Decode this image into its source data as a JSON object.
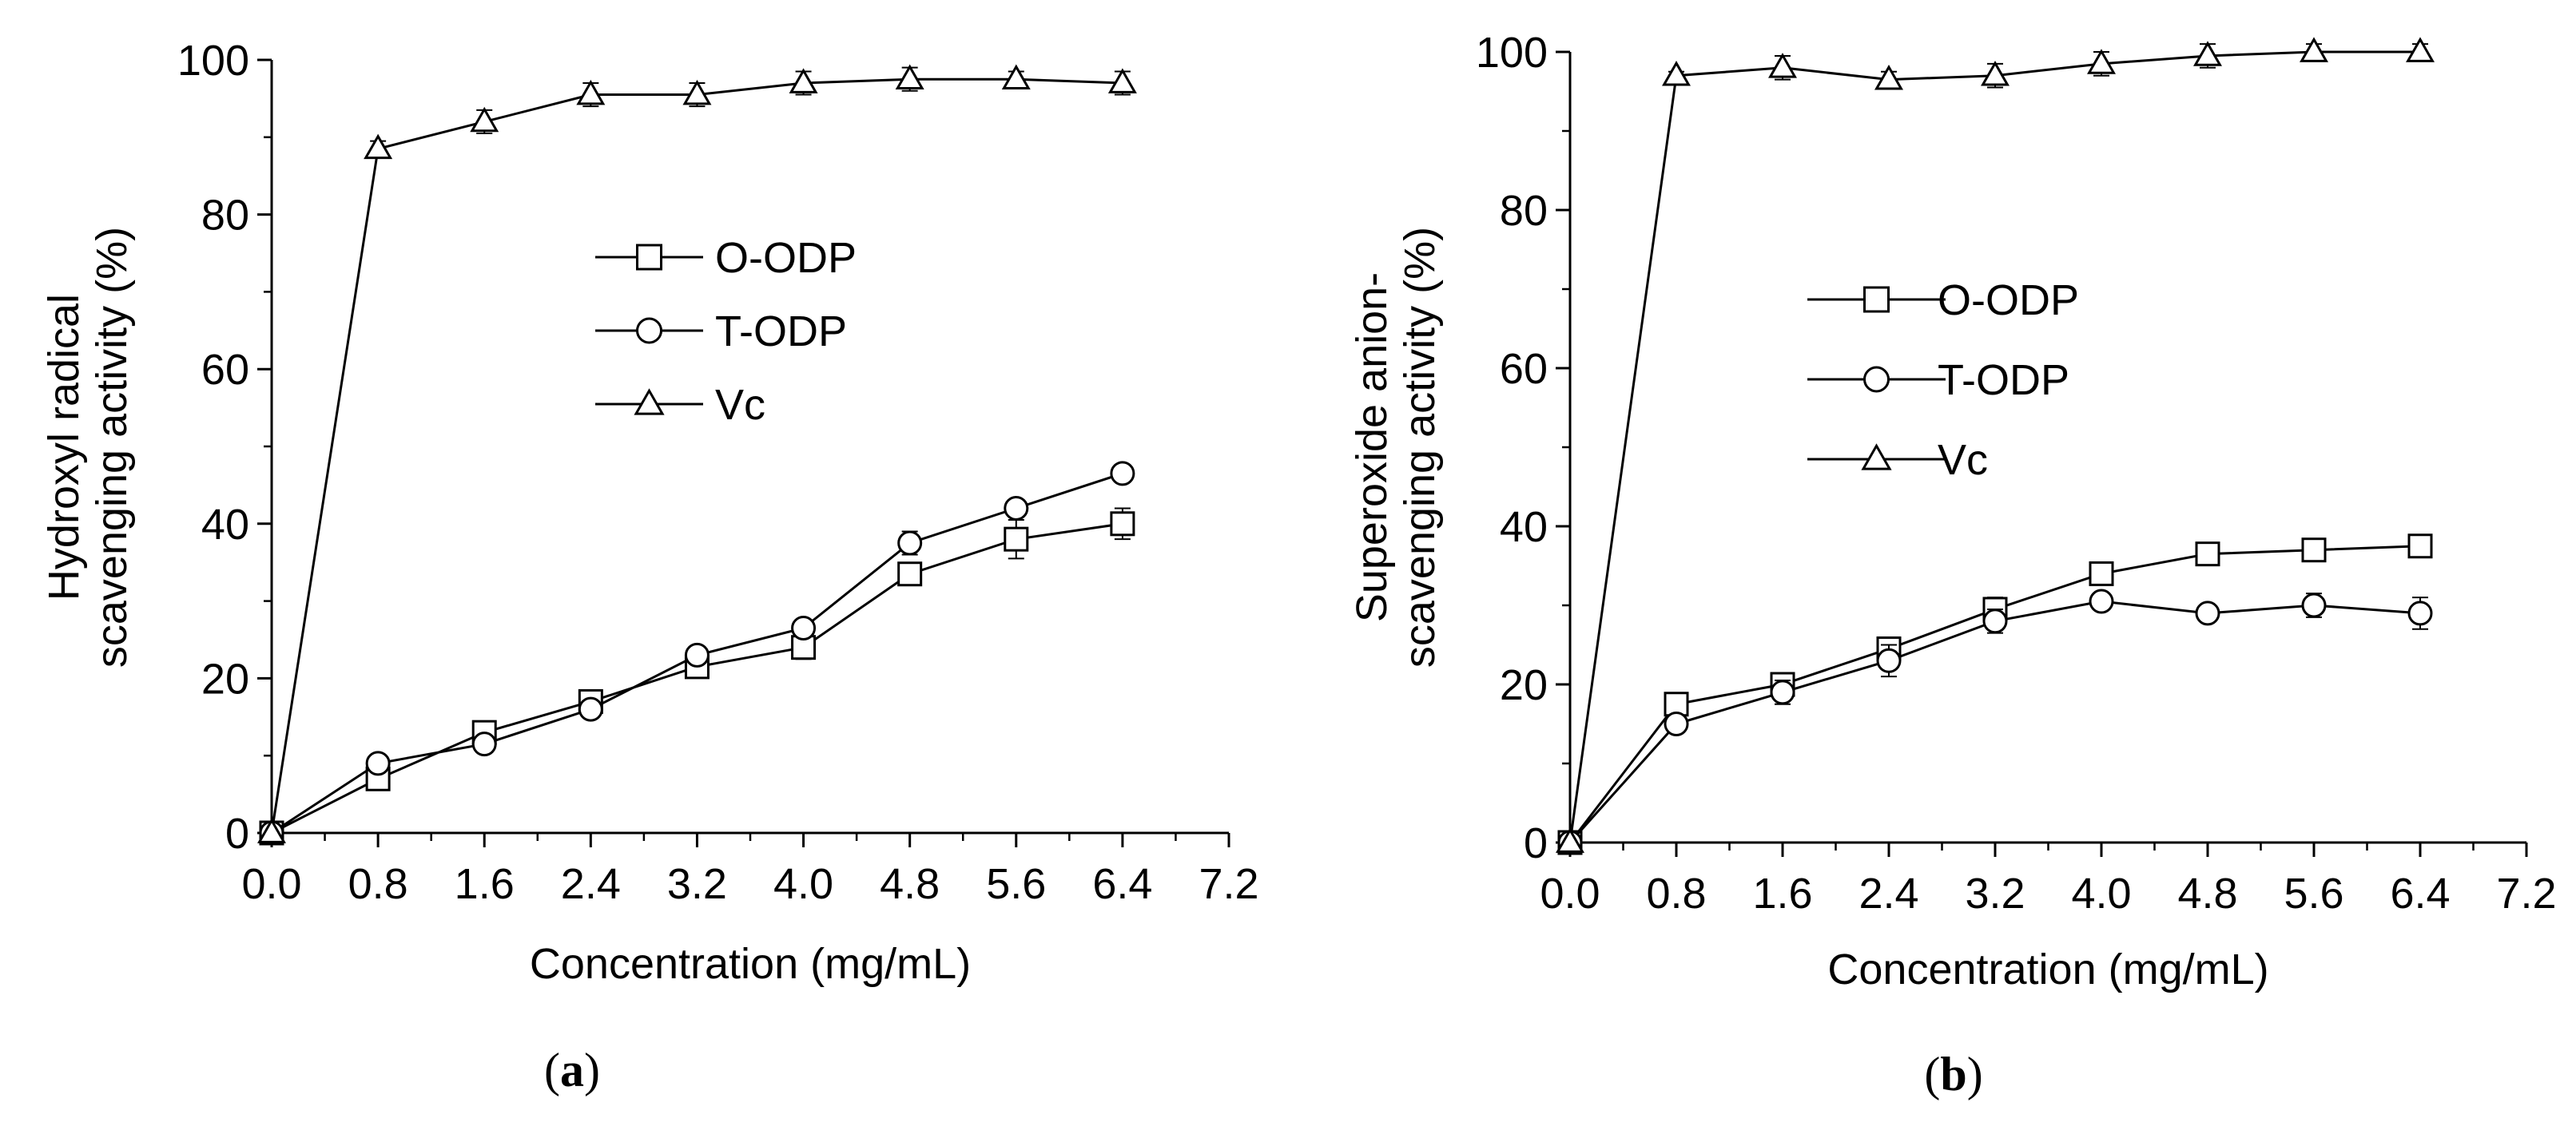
{
  "chart_data": [
    {
      "panel": "a",
      "panel_label": {
        "open": "(",
        "letter": "a",
        "close": ")"
      },
      "type": "line",
      "title": "",
      "xlabel": "Concentration (mg/mL)",
      "ylabel_lines": [
        "Hydroxyl radical",
        "scavenging activity (%)"
      ],
      "xlim": [
        0,
        7.2
      ],
      "ylim": [
        0,
        100
      ],
      "x_ticks": [
        0,
        0.8,
        1.6,
        2.4,
        3.2,
        4.0,
        4.8,
        5.6,
        6.4,
        7.2
      ],
      "x_tick_labels": [
        "0.0",
        "0.8",
        "1.6",
        "2.4",
        "3.2",
        "4.0",
        "4.8",
        "5.6",
        "6.4",
        "7.2"
      ],
      "y_ticks": [
        0,
        20,
        40,
        60,
        80,
        100
      ],
      "y_tick_labels": [
        "0",
        "20",
        "40",
        "60",
        "80",
        "100"
      ],
      "x": [
        0,
        0.8,
        1.6,
        2.4,
        3.2,
        4.0,
        4.8,
        5.6,
        6.4
      ],
      "legend_position": "center",
      "series": [
        {
          "name": "O-ODP",
          "marker": "square",
          "values": [
            0,
            7,
            13,
            17,
            21.5,
            24,
            33.5,
            38,
            40
          ],
          "errors": [
            0,
            1,
            1,
            0.8,
            1,
            1.5,
            1,
            2.5,
            2
          ]
        },
        {
          "name": "T-ODP",
          "marker": "circle",
          "values": [
            0,
            9,
            11.5,
            16,
            23,
            26.5,
            37.5,
            42,
            46.5
          ],
          "errors": [
            0,
            0.8,
            1,
            1,
            1,
            1,
            1.5,
            1,
            1
          ]
        },
        {
          "name": "Vc",
          "marker": "triangle",
          "values": [
            0,
            88.5,
            92,
            95.5,
            95.5,
            97,
            97.5,
            97.5,
            97
          ],
          "errors": [
            0,
            1,
            1.5,
            1.5,
            1.5,
            1.5,
            1.5,
            1,
            1.5
          ]
        }
      ]
    },
    {
      "panel": "b",
      "panel_label": {
        "open": "(",
        "letter": "b",
        "close": ")"
      },
      "type": "line",
      "title": "",
      "xlabel": "Concentration (mg/mL)",
      "ylabel_lines": [
        "Superoxide anion-",
        "scavenging activity (%)"
      ],
      "xlim": [
        0,
        7.2
      ],
      "ylim": [
        0,
        100
      ],
      "x_ticks": [
        0,
        0.8,
        1.6,
        2.4,
        3.2,
        4.0,
        4.8,
        5.6,
        6.4,
        7.2
      ],
      "x_tick_labels": [
        "0.0",
        "0.8",
        "1.6",
        "2.4",
        "3.2",
        "4.0",
        "4.8",
        "5.6",
        "6.4",
        "7.2"
      ],
      "y_ticks": [
        0,
        20,
        40,
        60,
        80,
        100
      ],
      "y_tick_labels": [
        "0",
        "20",
        "40",
        "60",
        "80",
        "100"
      ],
      "x": [
        0,
        0.8,
        1.6,
        2.4,
        3.2,
        4.0,
        4.8,
        5.6,
        6.4
      ],
      "legend_position": "center-left",
      "series": [
        {
          "name": "O-ODP",
          "marker": "square",
          "values": [
            0,
            17.5,
            20,
            24.5,
            29.5,
            34,
            36.5,
            37,
            37.5
          ],
          "errors": [
            0,
            1,
            1,
            1,
            1.5,
            1,
            1,
            1,
            1
          ]
        },
        {
          "name": "T-ODP",
          "marker": "circle",
          "values": [
            0,
            15,
            19,
            23,
            28,
            30.5,
            29,
            30,
            29
          ],
          "errors": [
            0,
            1,
            1.5,
            2,
            1.5,
            1,
            1,
            1.5,
            2
          ]
        },
        {
          "name": "Vc",
          "marker": "triangle",
          "values": [
            0,
            97,
            98,
            96.5,
            97,
            98.5,
            99.5,
            100,
            100
          ],
          "errors": [
            0,
            0.5,
            1.5,
            1,
            1.5,
            1.5,
            1.5,
            1,
            1
          ]
        }
      ]
    }
  ]
}
